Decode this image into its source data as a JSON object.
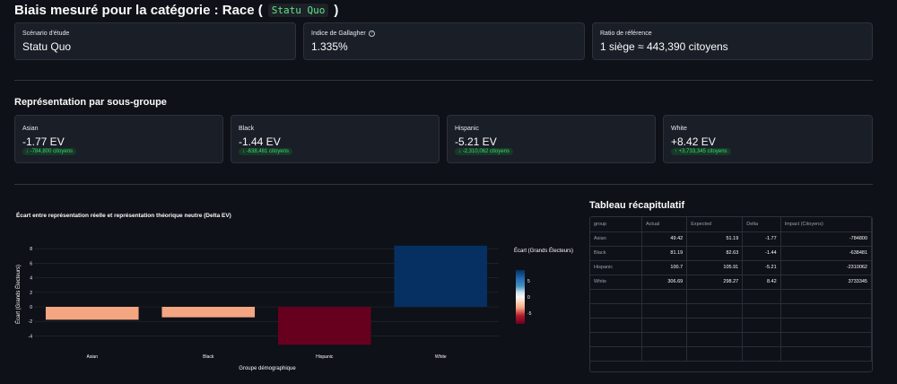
{
  "page": {
    "title_prefix": "Biais mesuré pour la catégorie : Race (",
    "title_code": "Statu Quo",
    "title_suffix": ")"
  },
  "top_metrics": [
    {
      "label": "Scénario d'étude",
      "value": "Statu Quo"
    },
    {
      "label": "Indice de Gallagher",
      "value": "1.335%",
      "has_help": true
    },
    {
      "label": "Ratio de référence",
      "value": "1 siège ≈ 443,390 citoyens"
    }
  ],
  "subgroups": {
    "heading": "Représentation par sous-groupe",
    "items": [
      {
        "label": "Asian",
        "value": "-1.77 EV",
        "delta": "↓ -784,800 citoyens"
      },
      {
        "label": "Black",
        "value": "-1.44 EV",
        "delta": "↓ -638,481 citoyens"
      },
      {
        "label": "Hispanic",
        "value": "-5.21 EV",
        "delta": "↓ -2,310,062 citoyens"
      },
      {
        "label": "White",
        "value": "+8.42 EV",
        "delta": "↑ +3,733,345 citoyens"
      }
    ]
  },
  "colors": {
    "negative_deep": "#67001f",
    "negative_light": "#f4a582",
    "positive_deep": "#053061",
    "delta_green": "#3dd56d"
  },
  "chart_data": {
    "type": "bar",
    "title": "Écart entre représentation réelle et représentation théorique neutre (Delta EV)",
    "categories": [
      "Asian",
      "Black",
      "Hispanic",
      "White"
    ],
    "values": [
      -1.77,
      -1.44,
      -5.21,
      8.42
    ],
    "xlabel": "Groupe démographique",
    "ylabel": "Écart (Grands Électeurs)",
    "ylim": [
      -5.21,
      8.42
    ],
    "yticks": [
      8,
      6,
      4,
      2,
      0,
      -2,
      -4
    ],
    "grid": true,
    "colorbar": {
      "title": "Écart (Grands Électeurs)",
      "ticks": [
        5,
        0,
        -5
      ],
      "range": [
        -8.42,
        8.42
      ]
    }
  },
  "table": {
    "heading": "Tableau récapitulatif",
    "columns": [
      "group",
      "Actual",
      "Expected",
      "Delta",
      "Impact (Citoyens)"
    ],
    "rows": [
      [
        "Asian",
        "49.42",
        "51.19",
        "-1.77",
        "-784800"
      ],
      [
        "Black",
        "81.19",
        "82.63",
        "-1.44",
        "-638481"
      ],
      [
        "Hispanic",
        "100.7",
        "105.91",
        "-5.21",
        "-2310062"
      ],
      [
        "White",
        "306.69",
        "298.27",
        "8.42",
        "3733345"
      ]
    ]
  }
}
